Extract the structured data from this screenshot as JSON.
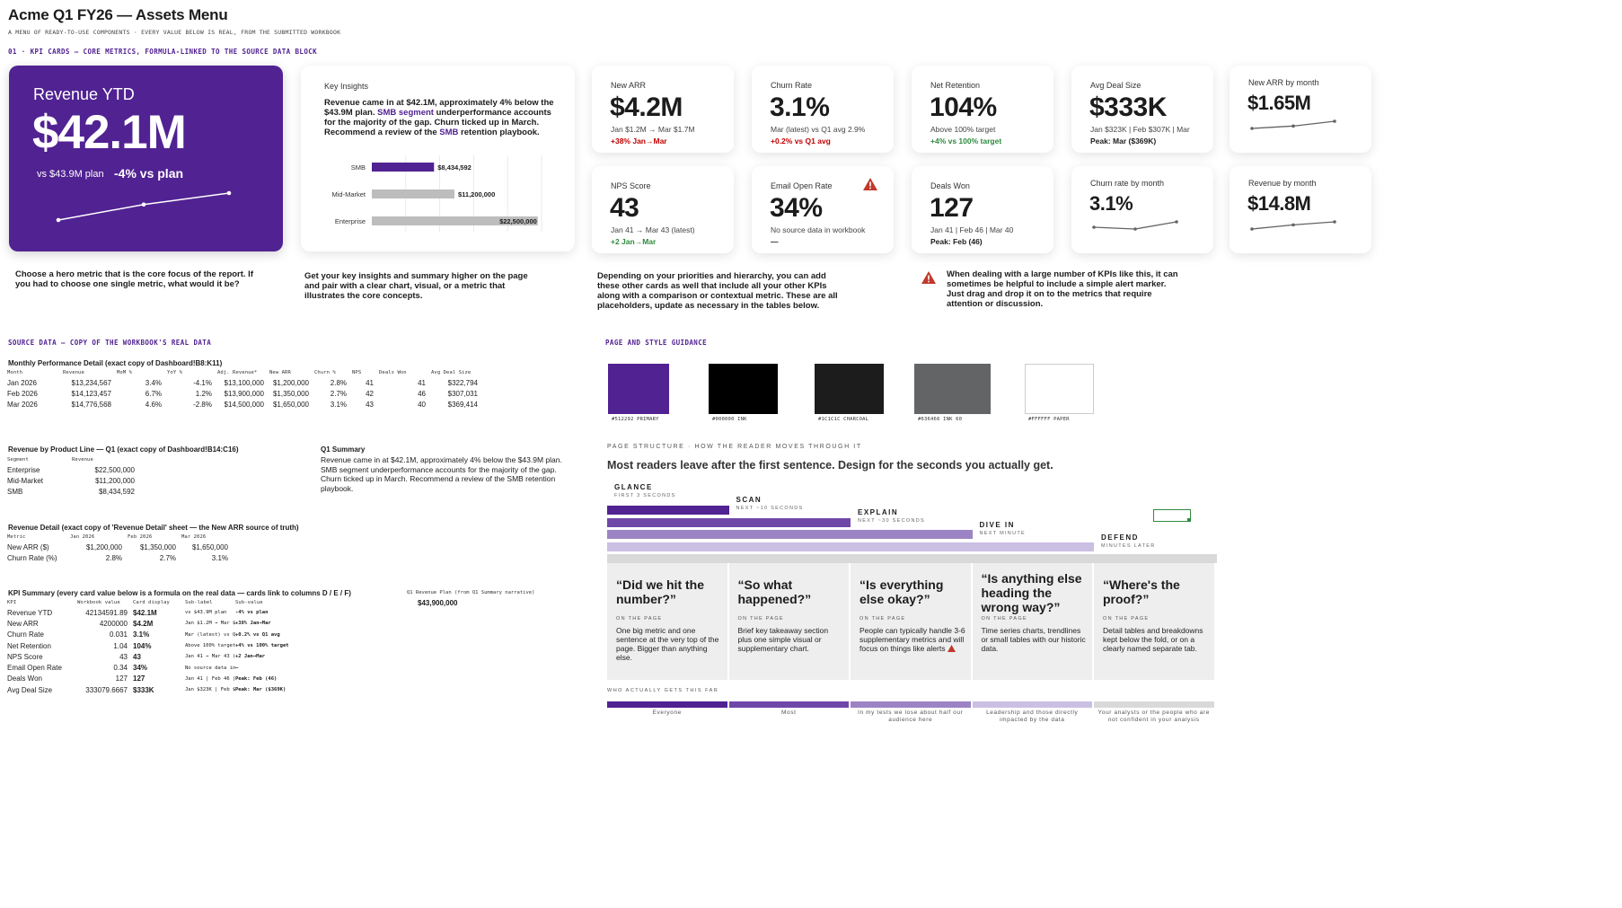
{
  "header": {
    "title": "Acme Q1 FY26 — Assets Menu",
    "subtitle": "A MENU OF READY-TO-USE COMPONENTS · EVERY VALUE BELOW IS REAL, FROM THE SUBMITTED WORKBOOK"
  },
  "sections": {
    "kpi_cards": "01 · KPI CARDS — CORE METRICS, FORMULA-LINKED TO THE SOURCE DATA BLOCK",
    "source_data": "SOURCE DATA — COPY OF THE WORKBOOK'S REAL DATA",
    "guidance": "PAGE AND STYLE GUIDANCE"
  },
  "hero": {
    "title": "Revenue YTD",
    "value": "$42.1M",
    "plan": "vs $43.9M plan",
    "delta": "-4% vs plan",
    "sparkline": [
      13234567,
      14123457,
      14776568
    ]
  },
  "insights": {
    "heading": "Key Insights",
    "text_a": "Revenue came in at $42.1M, approximately 4% below the $43.9M plan. ",
    "text_hl1": "SMB segment",
    "text_b": " underperformance accounts for the majority of the gap. Churn ticked up in March. Recommend a review of the ",
    "text_hl2": "SMB",
    "text_c": " retention playbook.",
    "bars": [
      {
        "label": "SMB",
        "value": 8434592,
        "display": "$8,434,592",
        "color": "#512292"
      },
      {
        "label": "Mid-Market",
        "value": 11200000,
        "display": "$11,200,000",
        "color": "#BDBDBD"
      },
      {
        "label": "Enterprise",
        "value": 22500000,
        "display": "$22,500,000",
        "color": "#BDBDBD"
      }
    ]
  },
  "kpis": [
    {
      "label": "New ARR",
      "value": "$4.2M",
      "sub1": "Jan $1.2M → Mar $1.7M",
      "sub2": "+38% Jan→Mar",
      "sub2_color": "red"
    },
    {
      "label": "Churn Rate",
      "value": "3.1%",
      "sub1": "Mar (latest) vs Q1 avg 2.9%",
      "sub2": "+0.2% vs Q1 avg",
      "sub2_color": "red"
    },
    {
      "label": "Net Retention",
      "value": "104%",
      "sub1": "Above 100% target",
      "sub2": "+4% vs 100% target",
      "sub2_color": "green"
    },
    {
      "label": "Avg Deal Size",
      "value": "$333K",
      "sub1": "Jan $323K | Feb $307K | Mar",
      "sub2": "Peak: Mar ($369K)",
      "sub2_color": "dark"
    },
    {
      "label": "New ARR by month",
      "value": "$1.65M",
      "spark": [
        1.2,
        1.35,
        1.65
      ]
    },
    {
      "label": "NPS Score",
      "value": "43",
      "sub1": "Jan 41 → Mar 43 (latest)",
      "sub2": "+2 Jan→Mar",
      "sub2_color": "green"
    },
    {
      "label": "Email Open Rate",
      "value": "34%",
      "sub1": "No source data in workbook",
      "sub2": "—",
      "sub2_color": "dark",
      "alert": true
    },
    {
      "label": "Deals Won",
      "value": "127",
      "sub1": "Jan 41 | Feb 46 | Mar 40",
      "sub2": "Peak: Feb (46)",
      "sub2_color": "dark"
    },
    {
      "label": "Churn rate by month",
      "value": "3.1%",
      "spark": [
        2.8,
        2.7,
        3.1
      ]
    },
    {
      "label": "Revenue by month",
      "value": "$14.8M",
      "spark": [
        13.23,
        14.12,
        14.78
      ]
    }
  ],
  "descriptions": {
    "hero": "Choose a hero metric that is the core focus of the report. If you had to choose one single metric, what would it be?",
    "insights": "Get your key insights and summary higher on the page and pair with a clear chart, visual, or a metric that illustrates the core concepts.",
    "cards": "Depending on your priorities and hierarchy, you can add these other cards as well that include all your other KPIs along with a comparison or contextual metric. These are all placeholders, update as necessary in the tables below.",
    "alert": "When dealing with a large number of KPIs like this, it can sometimes be helpful to include a simple alert marker. Just drag and drop it on to the metrics that require attention or discussion."
  },
  "monthly": {
    "title": "Monthly Performance Detail (exact copy of Dashboard!B8:K11)",
    "headers": [
      "Month",
      "Revenue",
      "MoM %",
      "YoY %",
      "Adj. Revenue*",
      "New ARR",
      "Churn %",
      "NPS",
      "Deals Won",
      "Avg Deal Size"
    ],
    "rows": [
      [
        "Jan 2026",
        "$13,234,567",
        "3.4%",
        "-4.1%",
        "$13,100,000",
        "$1,200,000",
        "2.8%",
        "41",
        "41",
        "$322,794"
      ],
      [
        "Feb 2026",
        "$14,123,457",
        "6.7%",
        "1.2%",
        "$13,900,000",
        "$1,350,000",
        "2.7%",
        "42",
        "46",
        "$307,031"
      ],
      [
        "Mar 2026",
        "$14,776,568",
        "4.6%",
        "-2.8%",
        "$14,500,000",
        "$1,650,000",
        "3.1%",
        "43",
        "40",
        "$369,414"
      ]
    ]
  },
  "product": {
    "title": "Revenue by Product Line — Q1 (exact copy of Dashboard!B14:C16)",
    "headers": [
      "Segment",
      "Revenue"
    ],
    "rows": [
      [
        "Enterprise",
        "$22,500,000"
      ],
      [
        "Mid-Market",
        "$11,200,000"
      ],
      [
        "SMB",
        "$8,434,592"
      ]
    ]
  },
  "summary": {
    "title": "Q1 Summary",
    "text": "Revenue came in at $42.1M, approximately 4% below the $43.9M plan. SMB segment underperformance accounts for the majority of the gap. Churn ticked up in March. Recommend a review of the SMB retention playbook."
  },
  "revdetail": {
    "title": "Revenue Detail (exact copy of 'Revenue Detail' sheet — the New ARR source of truth)",
    "headers": [
      "Metric",
      "Jan 2026",
      "Feb 2026",
      "Mar 2026"
    ],
    "rows": [
      [
        "New ARR ($)",
        "$1,200,000",
        "$1,350,000",
        "$1,650,000"
      ],
      [
        "Churn Rate (%)",
        "2.8%",
        "2.7%",
        "3.1%"
      ]
    ]
  },
  "kpisummary": {
    "title": "KPI Summary (every card value below is a formula on the real data — cards link to columns D / E / F)",
    "headers": [
      "KPI",
      "Workbook value",
      "Card display",
      "Sub-label",
      "Sub-value"
    ],
    "rows": [
      [
        "Revenue YTD",
        "42134591.89",
        "$42.1M",
        "vs $43.9M plan",
        "-4% vs plan"
      ],
      [
        "New ARR",
        "4200000",
        "$4.2M",
        "Jan $1.2M → Mar $1.7",
        "+38% Jan→Mar"
      ],
      [
        "Churn Rate",
        "0.031",
        "3.1%",
        "Mar (latest) vs Q1 av",
        "+0.2% vs Q1 avg"
      ],
      [
        "Net Retention",
        "1.04",
        "104%",
        "Above 100% target",
        "+4% vs 100% target"
      ],
      [
        "NPS Score",
        "43",
        "43",
        "Jan 41 → Mar 43 (late",
        "+2 Jan→Mar"
      ],
      [
        "Email Open Rate",
        "0.34",
        "34%",
        "No source data in wor",
        "—"
      ],
      [
        "Deals Won",
        "127",
        "127",
        "Jan 41 | Feb 46 | Ma",
        "Peak: Feb (46)"
      ],
      [
        "Avg Deal Size",
        "333079.6667",
        "$333K",
        "Jan $323K | Feb $307",
        "Peak: Mar ($369K)"
      ]
    ],
    "plan_label": "Q1 Revenue Plan (from Q1 Summary narrative)",
    "plan_value": "$43,900,000"
  },
  "swatches": [
    {
      "color": "#512292",
      "label": "#512292 PRIMARY"
    },
    {
      "color": "#000000",
      "label": "#000000 INK"
    },
    {
      "color": "#1C1C1C",
      "label": "#1C1C1C CHARCOAL"
    },
    {
      "color": "#636466",
      "label": "#636466 INK 60"
    },
    {
      "color": "#FFFFFF",
      "label": "#FFFFFF PAPER"
    }
  ],
  "structure": {
    "label": "PAGE STRUCTURE · HOW THE READER MOVES THROUGH IT",
    "headline": "Most readers leave after the first sentence. Design for the seconds you actually get.",
    "on_the_page": "ON THE PAGE",
    "who_label": "WHO ACTUALLY GETS THIS FAR",
    "stages": [
      {
        "name": "GLANCE",
        "time": "FIRST 3 SECONDS",
        "question": "“Did we hit the number?”",
        "desc": "One big metric and one sentence at the very top of the page. Bigger than anything else.",
        "audience": "Everyone",
        "color": "#512292"
      },
      {
        "name": "SCAN",
        "time": "NEXT ~10 SECONDS",
        "question": "“So what happened?”",
        "desc": "Brief key takeaway section plus one simple visual or supplementary chart.",
        "audience": "Most",
        "color": "#6F47A8"
      },
      {
        "name": "EXPLAIN",
        "time": "NEXT ~30 SECONDS",
        "question": "“Is everything else okay?”",
        "desc": "People can typically handle 3-6 supplementary metrics and will focus on things like alerts",
        "audience": "In my tests we lose about half our audience here",
        "color": "#9C84C4"
      },
      {
        "name": "DIVE IN",
        "time": "NEXT MINUTE",
        "question": "“Is anything else heading the wrong way?”",
        "desc": "Time series charts, trendlines or small tables with our historic data.",
        "audience": "Leadership and those directly impacted by the data",
        "color": "#CBBFE3"
      },
      {
        "name": "DEFEND",
        "time": "MINUTES LATER",
        "question": "“Where's the proof?”",
        "desc": "Detail tables and breakdowns kept below the fold, or on a clearly named separate tab.",
        "audience": "Your analysts or the people who are not confident in your analysis",
        "color": "#D9D9D9"
      }
    ]
  }
}
